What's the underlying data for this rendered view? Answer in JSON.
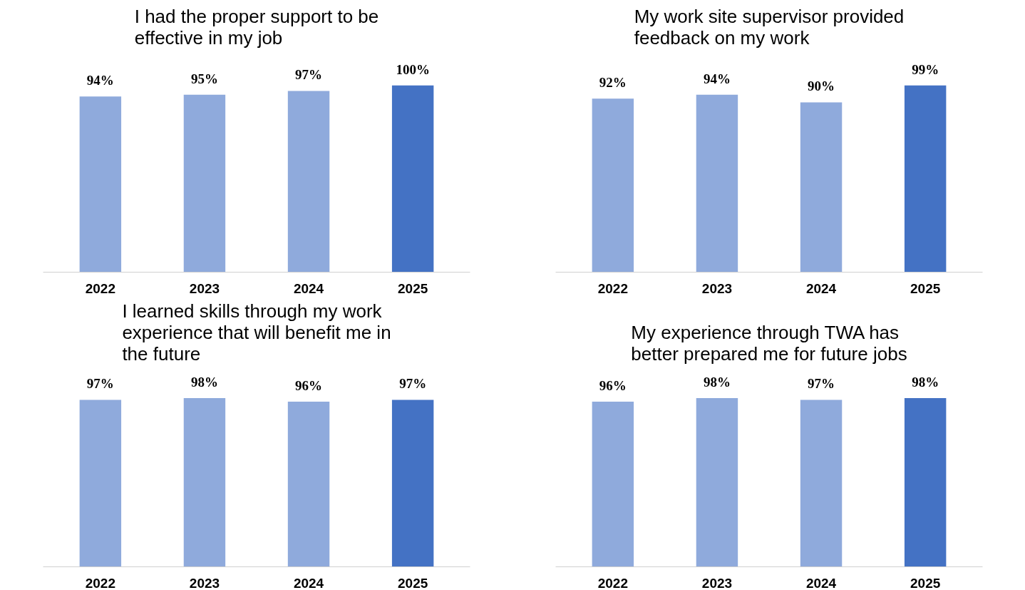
{
  "chart_data": [
    {
      "type": "bar",
      "title": "I had the proper support to be effective in my job",
      "categories": [
        "2022",
        "2023",
        "2024",
        "2025"
      ],
      "values": [
        94,
        95,
        97,
        100
      ],
      "colors": [
        "#8faadc",
        "#8faadc",
        "#8faadc",
        "#4472c4"
      ],
      "value_labels": [
        "94%",
        "95%",
        "97%",
        "100%"
      ]
    },
    {
      "type": "bar",
      "title": "My work site supervisor provided feedback on my work",
      "categories": [
        "2022",
        "2023",
        "2024",
        "2025"
      ],
      "values": [
        92,
        94,
        90,
        99
      ],
      "colors": [
        "#8faadc",
        "#8faadc",
        "#8faadc",
        "#4472c4"
      ],
      "value_labels": [
        "92%",
        "94%",
        "90%",
        "99%"
      ]
    },
    {
      "type": "bar",
      "title": "I learned skills through my work experience that will benefit me in the future",
      "categories": [
        "2022",
        "2023",
        "2024",
        "2025"
      ],
      "values": [
        97,
        98,
        96,
        97
      ],
      "colors": [
        "#8faadc",
        "#8faadc",
        "#8faadc",
        "#4472c4"
      ],
      "value_labels": [
        "97%",
        "98%",
        "96%",
        "97%"
      ]
    },
    {
      "type": "bar",
      "title": "My experience through TWA has better prepared me for future jobs",
      "categories": [
        "2022",
        "2023",
        "2024",
        "2025"
      ],
      "values": [
        96,
        98,
        97,
        98
      ],
      "colors": [
        "#8faadc",
        "#8faadc",
        "#8faadc",
        "#4472c4"
      ],
      "value_labels": [
        "96%",
        "98%",
        "97%",
        "98%"
      ]
    }
  ]
}
